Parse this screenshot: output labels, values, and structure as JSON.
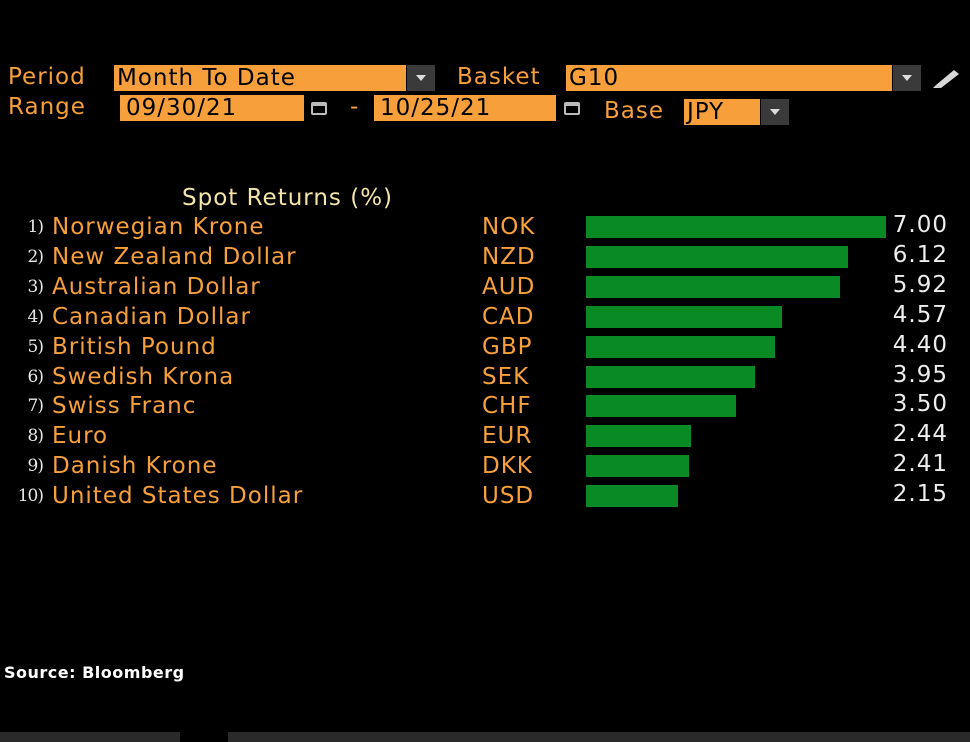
{
  "controls": {
    "period_label": "Period",
    "period_value": "Month To Date",
    "basket_label": "Basket",
    "basket_value": "G10",
    "range_label": "Range",
    "range_start": "09/30/21",
    "range_sep": "-",
    "range_end": "10/25/21",
    "base_label": "Base",
    "base_value": "JPY"
  },
  "chart_data": {
    "type": "bar",
    "orientation": "horizontal",
    "title": "Spot Returns (%)",
    "xlim": [
      0,
      7
    ],
    "grid": false,
    "bar_color": "#0a8a25",
    "rows": [
      {
        "rank": "1)",
        "name": "Norwegian Krone",
        "code": "NOK",
        "value": 7.0,
        "label": "7.00"
      },
      {
        "rank": "2)",
        "name": "New Zealand Dollar",
        "code": "NZD",
        "value": 6.12,
        "label": "6.12"
      },
      {
        "rank": "3)",
        "name": "Australian Dollar",
        "code": "AUD",
        "value": 5.92,
        "label": "5.92"
      },
      {
        "rank": "4)",
        "name": "Canadian Dollar",
        "code": "CAD",
        "value": 4.57,
        "label": "4.57"
      },
      {
        "rank": "5)",
        "name": "British Pound",
        "code": "GBP",
        "value": 4.4,
        "label": "4.40"
      },
      {
        "rank": "6)",
        "name": "Swedish Krona",
        "code": "SEK",
        "value": 3.95,
        "label": "3.95"
      },
      {
        "rank": "7)",
        "name": "Swiss Franc",
        "code": "CHF",
        "value": 3.5,
        "label": "3.50"
      },
      {
        "rank": "8)",
        "name": "Euro",
        "code": "EUR",
        "value": 2.44,
        "label": "2.44"
      },
      {
        "rank": "9)",
        "name": "Danish Krone",
        "code": "DKK",
        "value": 2.41,
        "label": "2.41"
      },
      {
        "rank": "10)",
        "name": "United States Dollar",
        "code": "USD",
        "value": 2.15,
        "label": "2.15"
      }
    ]
  },
  "source": "Source: Bloomberg",
  "icons": {
    "dropdown": "chevron-down-icon",
    "calendar": "calendar-icon",
    "edit": "pencil-icon"
  }
}
